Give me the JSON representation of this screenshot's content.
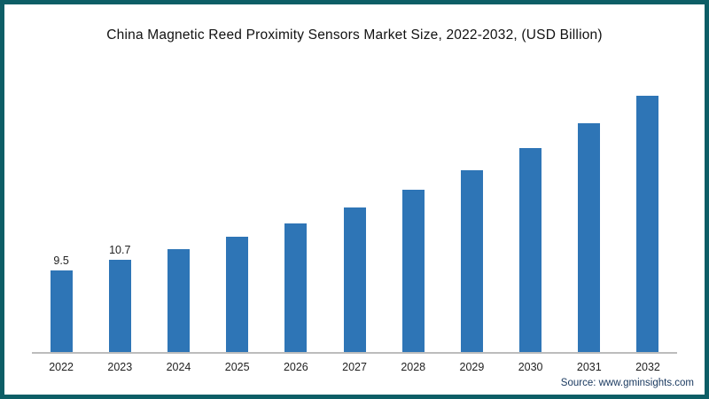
{
  "chart_data": {
    "type": "bar",
    "title": "China Magnetic Reed Proximity Sensors Market Size, 2022-2032, (USD Billion)",
    "categories": [
      "2022",
      "2023",
      "2024",
      "2025",
      "2026",
      "2027",
      "2028",
      "2029",
      "2030",
      "2031",
      "2032"
    ],
    "values": [
      9.5,
      10.7,
      12.0,
      13.4,
      15.0,
      16.8,
      18.9,
      21.2,
      23.7,
      26.6,
      29.8
    ],
    "data_labels": [
      "9.5",
      "10.7",
      "",
      "",
      "",
      "",
      "",
      "",
      "",
      "",
      ""
    ],
    "xlabel": "",
    "ylabel": "",
    "ylim": [
      0,
      32
    ],
    "grid": false,
    "legend_position": "none",
    "bar_color": "#2e75b6",
    "frame_color": "#0d5e66",
    "source": "Source: www.gminsights.com"
  }
}
